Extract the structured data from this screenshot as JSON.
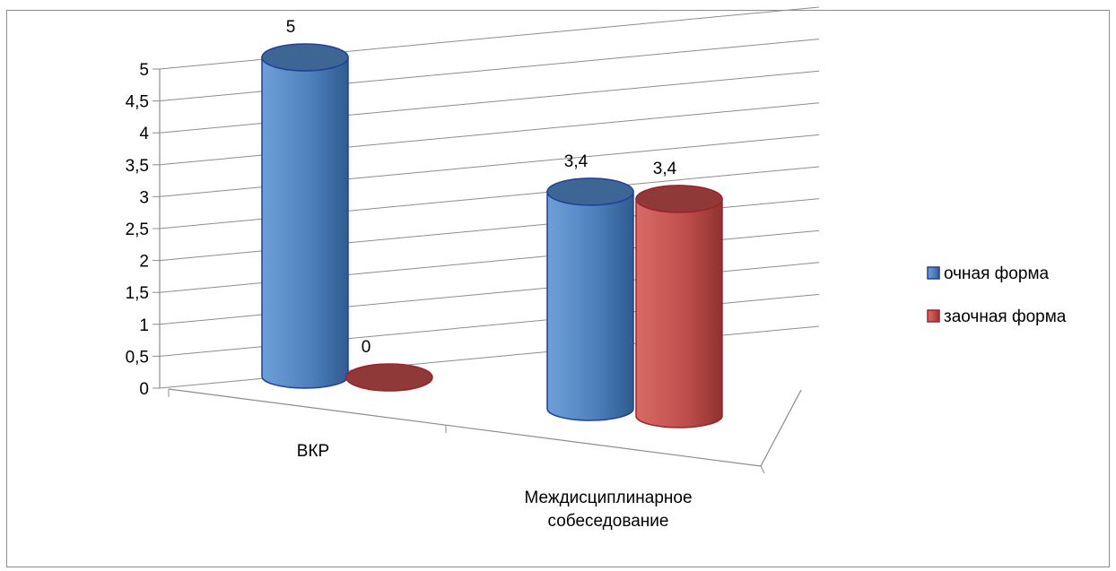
{
  "chart_data": {
    "type": "bar",
    "style": "3d-cylinder",
    "categories": [
      "ВКР",
      "Междисциплинарное собеседование"
    ],
    "series": [
      {
        "name": "очная форма",
        "values": [
          5,
          3.4
        ],
        "color": "#4f81bd"
      },
      {
        "name": "заочная форма",
        "values": [
          0,
          3.4
        ],
        "color": "#c0504d"
      }
    ],
    "data_labels": [
      [
        "5",
        "3,4"
      ],
      [
        "0",
        "3,4"
      ]
    ],
    "y_ticks": [
      "0",
      "0,5",
      "1",
      "1,5",
      "2",
      "2,5",
      "3",
      "3,5",
      "4",
      "4,5",
      "5"
    ],
    "ylim": [
      0,
      5
    ],
    "grid": true,
    "legend_position": "right"
  }
}
